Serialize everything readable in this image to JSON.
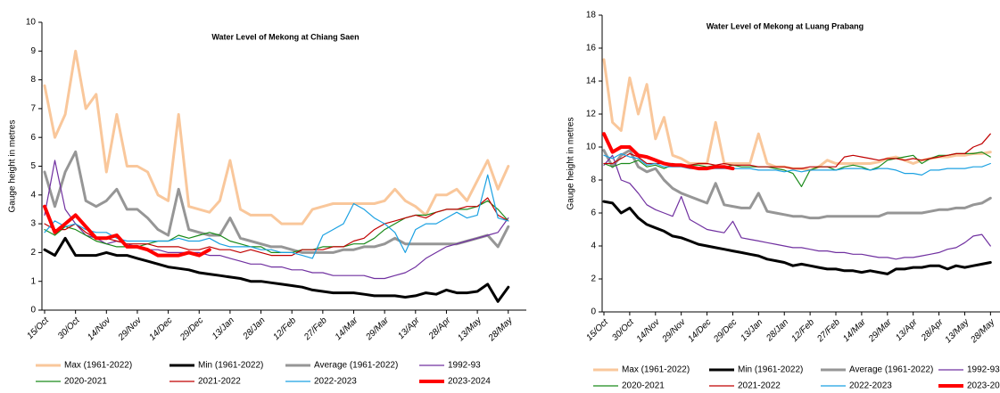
{
  "chart_data": [
    {
      "type": "line",
      "title": "Water Level of Mekong at Chiang Saen",
      "y_label": "Gauge height in metres",
      "categories": [
        "15/Oct",
        null,
        null,
        "30/Oct",
        null,
        null,
        "14/Nov",
        null,
        null,
        "29/Nov",
        null,
        null,
        "14/Dec",
        null,
        null,
        "29/Dec",
        null,
        null,
        "13/Jan",
        null,
        null,
        "28/Jan",
        null,
        null,
        "12/Feb",
        null,
        null,
        "27/Feb",
        null,
        null,
        "14/Mar",
        null,
        null,
        "29/Mar",
        null,
        null,
        "13/Apr",
        null,
        null,
        "28/Apr",
        null,
        null,
        "13/May",
        null,
        null,
        "28/May"
      ],
      "ylim": [
        0,
        10
      ],
      "yticks": [
        0,
        1,
        2,
        3,
        4,
        5,
        6,
        7,
        8,
        9,
        10
      ],
      "series": [
        {
          "name": "Max (1961-2022)",
          "color": "#f9c79b",
          "width": 3,
          "values": [
            7.8,
            6.0,
            6.8,
            9.0,
            7.0,
            7.5,
            4.8,
            6.8,
            5.0,
            5.0,
            4.8,
            4.0,
            3.8,
            6.8,
            3.6,
            3.5,
            3.4,
            3.8,
            5.2,
            3.5,
            3.3,
            3.3,
            3.3,
            3.0,
            3.0,
            3.0,
            3.5,
            3.6,
            3.7,
            3.7,
            3.7,
            3.7,
            3.7,
            3.8,
            4.2,
            3.8,
            3.6,
            3.3,
            4.0,
            4.0,
            4.2,
            3.8,
            4.5,
            5.2,
            4.2,
            5.0
          ]
        },
        {
          "name": "Min (1961-2022)",
          "color": "#000000",
          "width": 3,
          "values": [
            2.1,
            1.9,
            2.5,
            1.9,
            1.9,
            1.9,
            2.0,
            1.9,
            1.9,
            1.8,
            1.7,
            1.6,
            1.5,
            1.45,
            1.4,
            1.3,
            1.25,
            1.2,
            1.15,
            1.1,
            1.0,
            1.0,
            0.95,
            0.9,
            0.85,
            0.8,
            0.7,
            0.65,
            0.6,
            0.6,
            0.6,
            0.55,
            0.5,
            0.5,
            0.5,
            0.45,
            0.5,
            0.6,
            0.55,
            0.7,
            0.6,
            0.6,
            0.65,
            0.9,
            0.3,
            0.8
          ]
        },
        {
          "name": "Average (1961-2022)",
          "color": "#969696",
          "width": 3,
          "values": [
            4.8,
            3.6,
            4.8,
            5.5,
            3.8,
            3.6,
            3.8,
            4.2,
            3.5,
            3.5,
            3.2,
            2.8,
            2.6,
            4.2,
            2.8,
            2.7,
            2.6,
            2.6,
            3.2,
            2.5,
            2.4,
            2.3,
            2.2,
            2.2,
            2.1,
            2.0,
            2.0,
            2.0,
            2.0,
            2.1,
            2.1,
            2.2,
            2.2,
            2.3,
            2.5,
            2.3,
            2.3,
            2.3,
            2.3,
            2.3,
            2.3,
            2.4,
            2.5,
            2.6,
            2.2,
            2.9
          ]
        },
        {
          "name": "1992-93",
          "color": "#7030a0",
          "width": 1.2,
          "values": [
            3.3,
            5.2,
            3.5,
            3.0,
            2.6,
            2.5,
            2.3,
            2.4,
            2.3,
            2.2,
            2.1,
            2.1,
            2.0,
            2.0,
            2.0,
            2.0,
            1.9,
            1.9,
            1.8,
            1.7,
            1.6,
            1.6,
            1.5,
            1.5,
            1.4,
            1.4,
            1.3,
            1.3,
            1.2,
            1.2,
            1.2,
            1.2,
            1.1,
            1.1,
            1.2,
            1.3,
            1.5,
            1.8,
            2.0,
            2.2,
            2.3,
            2.4,
            2.5,
            2.6,
            2.7,
            3.2
          ]
        },
        {
          "name": "2020-2021",
          "color": "#1a8a1a",
          "width": 1.2,
          "values": [
            2.8,
            2.6,
            2.9,
            2.8,
            2.6,
            2.4,
            2.3,
            2.2,
            2.2,
            2.2,
            2.3,
            2.4,
            2.4,
            2.6,
            2.5,
            2.6,
            2.7,
            2.6,
            2.4,
            2.3,
            2.2,
            2.2,
            2.0,
            2.0,
            2.0,
            2.1,
            2.1,
            2.2,
            2.2,
            2.2,
            2.3,
            2.3,
            2.5,
            2.8,
            3.0,
            3.2,
            3.3,
            3.3,
            3.4,
            3.5,
            3.5,
            3.5,
            3.6,
            3.8,
            3.5,
            3.1
          ]
        },
        {
          "name": "2021-2022",
          "color": "#c00000",
          "width": 1.2,
          "values": [
            3.0,
            2.8,
            2.8,
            3.0,
            2.7,
            2.5,
            2.5,
            2.4,
            2.3,
            2.3,
            2.3,
            2.2,
            2.2,
            2.2,
            2.1,
            2.1,
            2.2,
            2.1,
            2.1,
            2.0,
            2.1,
            2.0,
            1.9,
            1.9,
            1.9,
            2.1,
            2.1,
            2.1,
            2.2,
            2.2,
            2.4,
            2.5,
            2.8,
            3.0,
            3.1,
            3.2,
            3.3,
            3.2,
            3.4,
            3.5,
            3.5,
            3.6,
            3.6,
            3.9,
            3.3,
            3.1
          ]
        },
        {
          "name": "2022-2023",
          "color": "#1ba1e2",
          "width": 1.2,
          "values": [
            2.7,
            3.1,
            2.9,
            3.0,
            2.8,
            2.7,
            2.7,
            2.5,
            2.4,
            2.4,
            2.4,
            2.4,
            2.4,
            2.5,
            2.4,
            2.4,
            2.5,
            2.3,
            2.2,
            2.2,
            2.2,
            2.1,
            2.1,
            2.0,
            2.0,
            1.9,
            1.8,
            2.6,
            2.8,
            3.0,
            3.7,
            3.5,
            3.2,
            3.0,
            2.7,
            2.0,
            2.8,
            3.0,
            3.0,
            3.2,
            3.4,
            3.2,
            3.3,
            4.7,
            3.2,
            3.1
          ]
        },
        {
          "name": "2023-2024",
          "color": "#ff0000",
          "width": 4,
          "values": [
            3.6,
            2.7,
            3.0,
            3.3,
            2.9,
            2.5,
            2.5,
            2.6,
            2.2,
            2.2,
            2.1,
            1.9,
            1.9,
            1.9,
            2.0,
            1.9,
            2.1,
            null,
            null,
            null,
            null,
            null,
            null,
            null,
            null,
            null,
            null,
            null,
            null,
            null,
            null,
            null,
            null,
            null,
            null,
            null,
            null,
            null,
            null,
            null,
            null,
            null,
            null,
            null,
            null,
            null
          ]
        }
      ]
    },
    {
      "type": "line",
      "title": "Water Level of Mekong at Luang Prabang",
      "y_label": "Gauge height in metres",
      "categories": [
        "15/Oct",
        null,
        null,
        "30/Oct",
        null,
        null,
        "14/Nov",
        null,
        null,
        "29/Nov",
        null,
        null,
        "14/Dec",
        null,
        null,
        "29/Dec",
        null,
        null,
        "13/Jan",
        null,
        null,
        "28/Jan",
        null,
        null,
        "12/Feb",
        null,
        null,
        "27/Feb",
        null,
        null,
        "14/Mar",
        null,
        null,
        "29/Mar",
        null,
        null,
        "13/Apr",
        null,
        null,
        "28/Apr",
        null,
        null,
        "13/May",
        null,
        null,
        "28/May"
      ],
      "ylim": [
        0,
        18
      ],
      "yticks": [
        0,
        2,
        4,
        6,
        8,
        10,
        12,
        14,
        16,
        18
      ],
      "series": [
        {
          "name": "Max (1961-2022)",
          "color": "#f9c79b",
          "width": 3,
          "values": [
            15.3,
            11.5,
            11.0,
            14.2,
            12.0,
            13.8,
            10.5,
            11.8,
            9.5,
            9.3,
            9.0,
            9.0,
            9.0,
            11.5,
            9.0,
            9.0,
            9.0,
            9.0,
            10.8,
            9.0,
            8.8,
            8.8,
            8.7,
            8.7,
            8.6,
            8.8,
            9.2,
            9.0,
            9.0,
            9.0,
            9.0,
            9.0,
            9.1,
            9.3,
            9.4,
            9.2,
            9.0,
            9.2,
            9.3,
            9.4,
            9.4,
            9.5,
            9.5,
            9.6,
            9.6,
            9.7
          ]
        },
        {
          "name": "Min (1961-2022)",
          "color": "#000000",
          "width": 3,
          "values": [
            6.7,
            6.6,
            6.0,
            6.3,
            5.7,
            5.3,
            5.1,
            4.9,
            4.6,
            4.5,
            4.3,
            4.1,
            4.0,
            3.9,
            3.8,
            3.7,
            3.6,
            3.5,
            3.4,
            3.2,
            3.1,
            3.0,
            2.8,
            2.9,
            2.8,
            2.7,
            2.6,
            2.6,
            2.5,
            2.5,
            2.4,
            2.5,
            2.4,
            2.3,
            2.6,
            2.6,
            2.7,
            2.7,
            2.8,
            2.8,
            2.6,
            2.8,
            2.7,
            2.8,
            2.9,
            3.0
          ]
        },
        {
          "name": "Average (1961-2022)",
          "color": "#969696",
          "width": 3,
          "values": [
            9.8,
            8.8,
            9.5,
            9.8,
            8.8,
            8.5,
            8.7,
            8.0,
            7.5,
            7.2,
            7.0,
            6.8,
            6.6,
            7.8,
            6.5,
            6.4,
            6.3,
            6.3,
            7.2,
            6.1,
            6.0,
            5.9,
            5.8,
            5.8,
            5.7,
            5.7,
            5.8,
            5.8,
            5.8,
            5.8,
            5.8,
            5.8,
            5.8,
            6.0,
            6.0,
            6.0,
            6.0,
            6.0,
            6.1,
            6.2,
            6.2,
            6.3,
            6.3,
            6.5,
            6.6,
            6.9
          ]
        },
        {
          "name": "1992-93",
          "color": "#7030a0",
          "width": 1.2,
          "values": [
            8.9,
            9.5,
            8.0,
            7.8,
            7.2,
            6.5,
            6.2,
            6.0,
            5.8,
            7.0,
            5.6,
            5.3,
            5.0,
            4.9,
            4.8,
            5.5,
            4.5,
            4.4,
            4.3,
            4.2,
            4.1,
            4.0,
            3.9,
            3.9,
            3.8,
            3.7,
            3.7,
            3.6,
            3.6,
            3.5,
            3.5,
            3.4,
            3.3,
            3.3,
            3.2,
            3.3,
            3.3,
            3.4,
            3.5,
            3.6,
            3.8,
            3.9,
            4.2,
            4.6,
            4.7,
            4.0
          ]
        },
        {
          "name": "2020-2021",
          "color": "#1a8a1a",
          "width": 1.2,
          "values": [
            9.0,
            8.8,
            9.0,
            9.0,
            9.2,
            8.8,
            8.9,
            8.7,
            8.9,
            8.9,
            8.9,
            8.9,
            8.8,
            8.9,
            8.8,
            8.9,
            8.8,
            8.8,
            8.8,
            8.8,
            8.7,
            8.6,
            8.4,
            7.6,
            8.6,
            8.8,
            8.8,
            8.6,
            8.8,
            8.9,
            8.8,
            8.6,
            8.8,
            9.2,
            9.3,
            9.4,
            9.5,
            9.0,
            9.3,
            9.5,
            9.5,
            9.6,
            9.6,
            9.6,
            9.7,
            9.4
          ]
        },
        {
          "name": "2021-2022",
          "color": "#c00000",
          "width": 1.2,
          "values": [
            9.0,
            9.0,
            9.3,
            9.6,
            9.4,
            9.0,
            9.0,
            9.0,
            9.0,
            8.9,
            8.9,
            9.0,
            9.0,
            8.9,
            9.0,
            8.9,
            8.9,
            8.9,
            8.8,
            8.8,
            8.8,
            8.8,
            8.7,
            8.7,
            8.8,
            8.8,
            8.8,
            8.8,
            9.4,
            9.5,
            9.4,
            9.3,
            9.2,
            9.3,
            9.3,
            9.2,
            9.3,
            9.2,
            9.3,
            9.4,
            9.5,
            9.6,
            9.6,
            10.0,
            10.2,
            10.8
          ]
        },
        {
          "name": "2022-2023",
          "color": "#1ba1e2",
          "width": 1.2,
          "values": [
            9.5,
            9.3,
            9.6,
            9.4,
            9.3,
            8.9,
            9.0,
            8.8,
            8.8,
            8.8,
            8.7,
            8.7,
            8.7,
            8.7,
            8.7,
            8.7,
            8.7,
            8.7,
            8.6,
            8.6,
            8.6,
            8.5,
            8.6,
            8.5,
            8.6,
            8.6,
            8.6,
            8.6,
            8.7,
            8.7,
            8.7,
            8.6,
            8.7,
            8.7,
            8.6,
            8.4,
            8.4,
            8.3,
            8.6,
            8.6,
            8.7,
            8.7,
            8.7,
            8.8,
            8.8,
            9.0
          ]
        },
        {
          "name": "2023-2024",
          "color": "#ff0000",
          "width": 4,
          "values": [
            10.8,
            9.7,
            10.0,
            10.0,
            9.5,
            9.4,
            9.2,
            9.0,
            8.9,
            8.9,
            8.8,
            8.7,
            8.7,
            8.8,
            8.8,
            8.7,
            null,
            null,
            null,
            null,
            null,
            null,
            null,
            null,
            null,
            null,
            null,
            null,
            null,
            null,
            null,
            null,
            null,
            null,
            null,
            null,
            null,
            null,
            null,
            null,
            null,
            null,
            null,
            null,
            null,
            null
          ]
        }
      ]
    }
  ]
}
